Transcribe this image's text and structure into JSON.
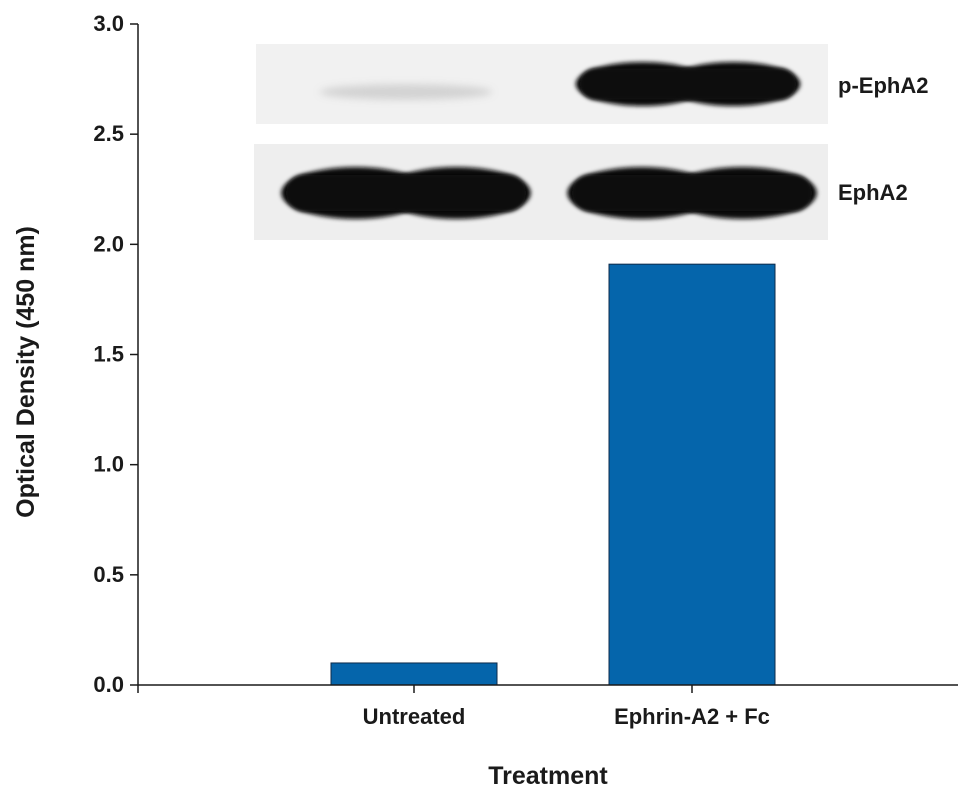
{
  "chart_data": {
    "type": "bar",
    "categories": [
      "Untreated",
      "Ephrin-A2 + Fc"
    ],
    "values": [
      0.1,
      1.91
    ],
    "xlabel": "Treatment",
    "ylabel": "Optical Density (450 nm)",
    "ylim": [
      0,
      3.0
    ],
    "yticks": [
      "0.0",
      "0.5",
      "1.0",
      "1.5",
      "2.0",
      "2.5",
      "3.0"
    ],
    "bar_color": "#0565ab",
    "grid": false,
    "legend": "none",
    "inset": {
      "description": "western blot image",
      "rows": [
        {
          "label": "p-EphA2",
          "band_intensity": [
            0.05,
            1.0
          ]
        },
        {
          "label": "EphA2",
          "band_intensity": [
            1.0,
            1.0
          ]
        }
      ]
    }
  }
}
